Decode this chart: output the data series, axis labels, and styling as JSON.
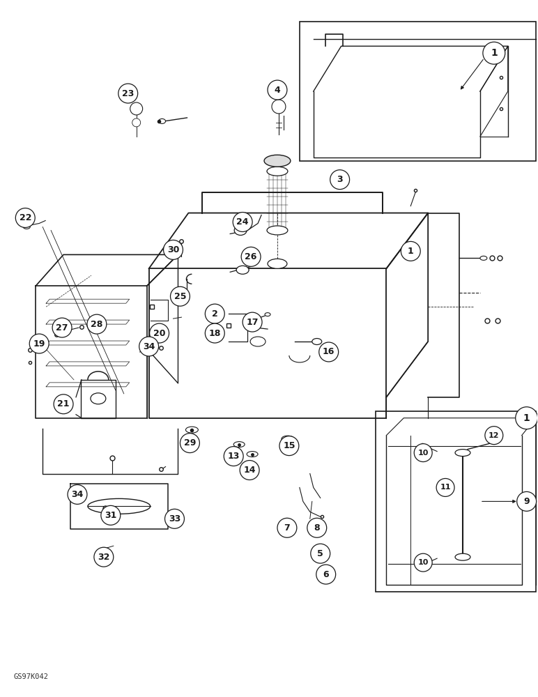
{
  "figsize": [
    7.72,
    10.0
  ],
  "dpi": 100,
  "bg_color": "#ffffff",
  "lc": "#1a1a1a",
  "watermark": "GS97K042",
  "callout_r": 0.022
}
